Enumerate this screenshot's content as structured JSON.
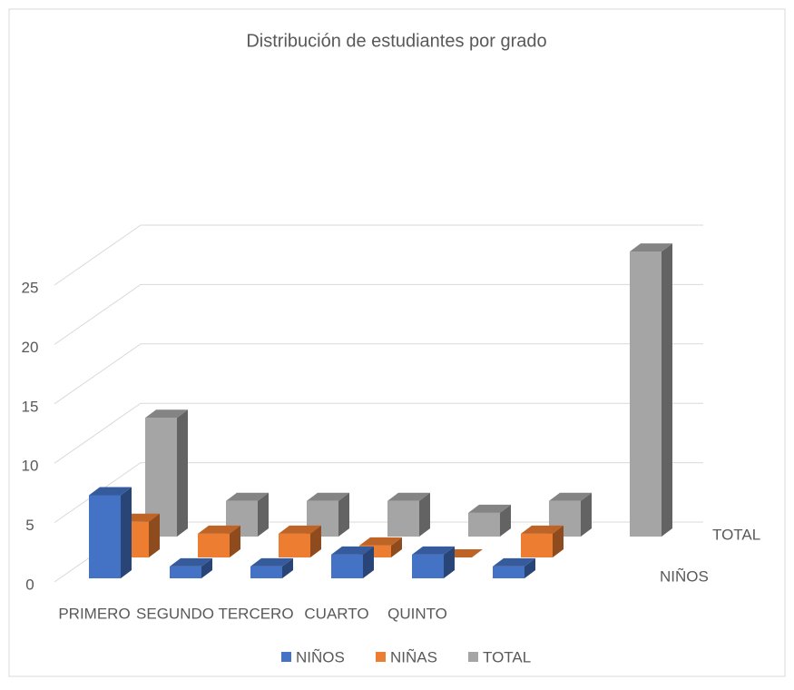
{
  "chart_data": {
    "type": "bar3d",
    "title": "Distribución de estudiantes por grado",
    "categories": [
      "PRIMERO",
      "SEGUNDO",
      "TERCERO",
      "CUARTO",
      "QUINTO",
      null,
      null
    ],
    "series": [
      {
        "name": "NIÑOS",
        "color": "#4472c4",
        "values": [
          7,
          1,
          1,
          2,
          2,
          1,
          null
        ]
      },
      {
        "name": "NIÑAS",
        "color": "#ed7d31",
        "values": [
          3,
          2,
          2,
          1,
          0,
          2,
          null
        ]
      },
      {
        "name": "TOTAL",
        "color": "#a5a5a5",
        "values": [
          10,
          3,
          3,
          3,
          2,
          3,
          24
        ]
      }
    ],
    "ylim": [
      0,
      25
    ],
    "yticks": [
      0,
      5,
      10,
      15,
      20,
      25
    ],
    "grid": true,
    "legend": "bottom"
  }
}
